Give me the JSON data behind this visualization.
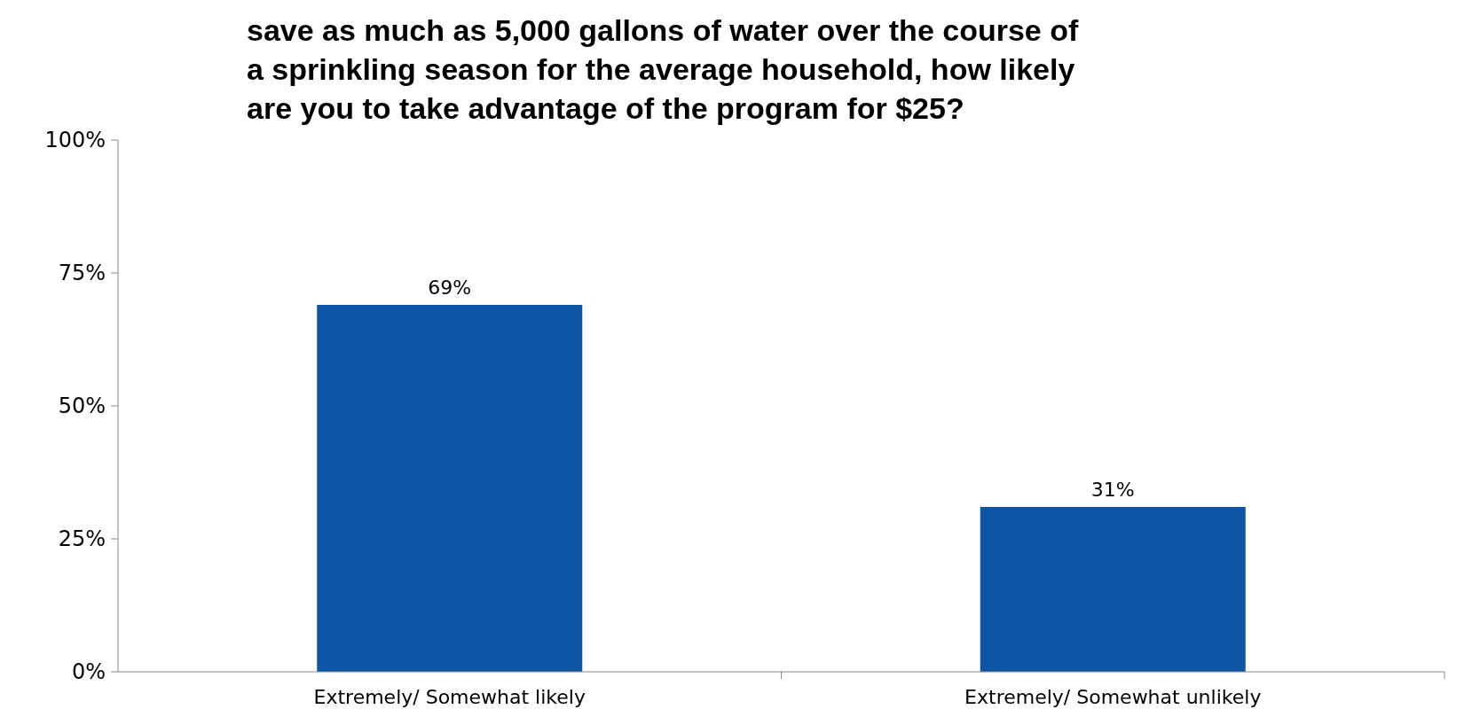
{
  "chart_data": {
    "type": "bar",
    "title": "save as much as 5,000 gallons of water over the course of a sprinkling season for the average household, how likely are you to take advantage of the program for $25?",
    "categories": [
      "Extremely/ Somewhat likely",
      "Extremely/ Somewhat unlikely"
    ],
    "values": [
      69,
      31
    ],
    "color": "#0e56a5",
    "value_labels": [
      "69%",
      "31%"
    ],
    "ylim": [
      0,
      100
    ],
    "yticks": [
      {
        "value": 0,
        "label": "0%"
      },
      {
        "value": 25,
        "label": "25%"
      },
      {
        "value": 50,
        "label": "50%"
      },
      {
        "value": 75,
        "label": "75%"
      },
      {
        "value": 100,
        "label": "100%"
      }
    ],
    "grid": false
  }
}
